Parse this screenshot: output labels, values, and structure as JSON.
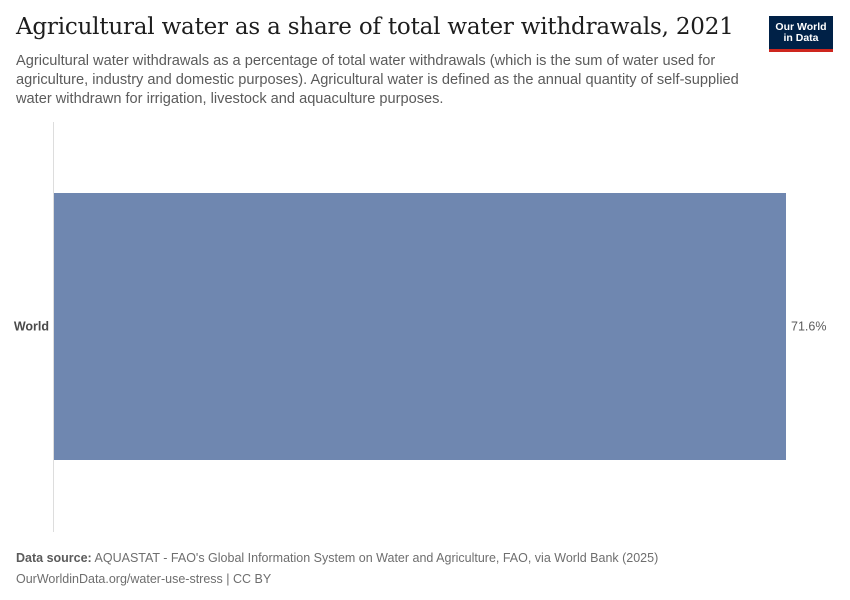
{
  "header": {
    "title": "Agricultural water as a share of total water withdrawals, 2021",
    "subtitle": "Agricultural water withdrawals as a percentage of total water withdrawals (which is the sum of water used for agriculture, industry and domestic purposes). Agricultural water is defined as the annual quantity of self-supplied water withdrawn for irrigation, livestock and aquaculture purposes."
  },
  "logo": {
    "line1": "Our World",
    "line2": "in Data",
    "background": "#002147",
    "accent": "#ce261e"
  },
  "chart_data": {
    "type": "bar",
    "orientation": "horizontal",
    "categories": [
      "World"
    ],
    "values": [
      71.6
    ],
    "value_labels": [
      "71.6%"
    ],
    "xlim": [
      0,
      71.6
    ],
    "grid": false,
    "bar_color": "#6f87b0"
  },
  "footer": {
    "source_label": "Data source:",
    "source_text": "AQUASTAT - FAO's Global Information System on Water and Agriculture, FAO, via World Bank (2025)",
    "url_line": "OurWorldinData.org/water-use-stress | CC BY"
  }
}
